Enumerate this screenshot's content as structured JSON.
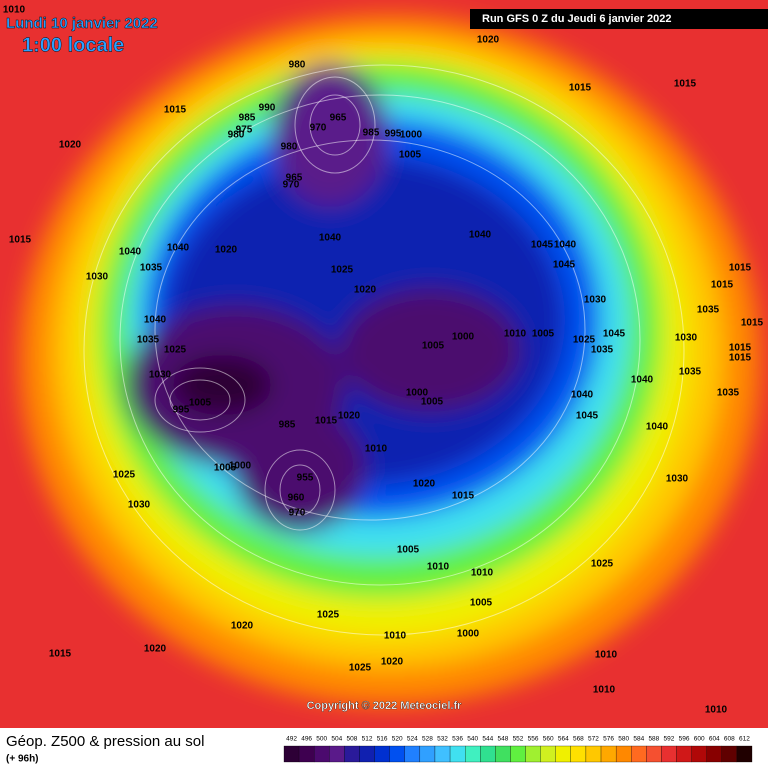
{
  "header": {
    "date": "Lundi 10 janvier 2022",
    "time": "1:00 locale",
    "run": "Run GFS 0 Z du Jeudi 6 janvier 2022"
  },
  "map": {
    "isobar_labels": [
      1010,
      1020,
      980,
      1015,
      990,
      985,
      965,
      970,
      975,
      980,
      985,
      995,
      1000,
      1015,
      1015,
      1020,
      980,
      1005,
      965,
      970,
      1040,
      1040,
      1045,
      1040,
      1015,
      1040,
      1040,
      1020,
      1035,
      1045,
      1015,
      1025,
      1030,
      1015,
      1020,
      1030,
      1035,
      1015,
      1040,
      1035,
      1025,
      1030,
      1000,
      1010,
      1005,
      1025,
      1045,
      1005,
      1035,
      1030,
      1015,
      1015,
      995,
      1005,
      1000,
      1005,
      1040,
      1040,
      1035,
      1035,
      985,
      1015,
      1020,
      1045,
      1040,
      1010,
      1005,
      1000,
      955,
      960,
      970,
      1020,
      1015,
      1025,
      1030,
      1030,
      1005,
      1010,
      1010,
      1025,
      1005,
      1000,
      1025,
      1020,
      1010,
      1020,
      1015,
      1025,
      1020,
      1010,
      1010,
      1010
    ]
  },
  "footer": {
    "title": "Géop. Z500 & pression au sol",
    "lead": "(+ 96h)",
    "copyright": "Copyright © 2022 Meteociel.fr"
  },
  "legend": {
    "ticks": [
      492,
      496,
      500,
      504,
      508,
      512,
      516,
      520,
      524,
      528,
      532,
      536,
      540,
      544,
      548,
      552,
      556,
      560,
      564,
      568,
      572,
      576,
      580,
      584,
      588,
      592,
      596,
      600,
      604,
      608,
      612
    ],
    "colors": [
      "#2d0036",
      "#3e0050",
      "#4b0a6e",
      "#5a1a8a",
      "#2a1a9a",
      "#1020b0",
      "#0030d0",
      "#0050f0",
      "#2080ff",
      "#30a0ff",
      "#40c0ff",
      "#40e0f0",
      "#40f0c0",
      "#30e090",
      "#40e060",
      "#60f040",
      "#a0f030",
      "#d0f020",
      "#f0f000",
      "#ffe000",
      "#ffc800",
      "#ffa800",
      "#ff8800",
      "#ff6a20",
      "#f55030",
      "#e83030",
      "#d01818",
      "#b00808",
      "#880000",
      "#600000",
      "#200000"
    ]
  }
}
